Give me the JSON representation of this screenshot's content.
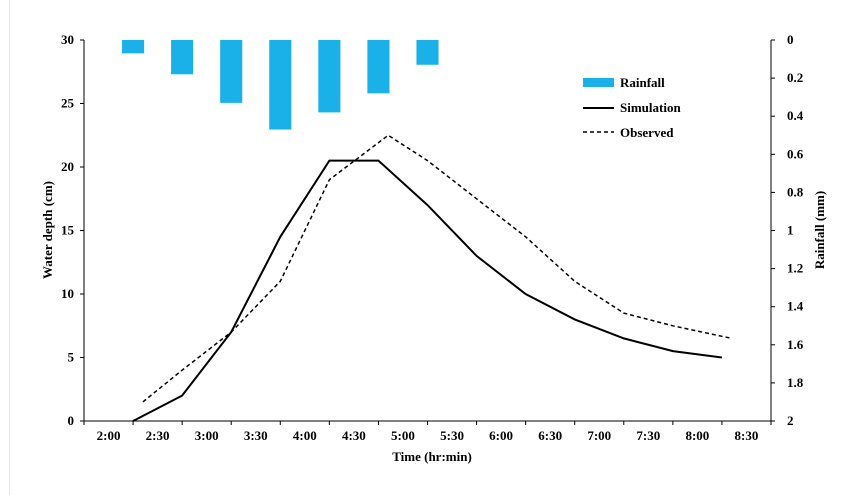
{
  "chart_data": {
    "type": "line",
    "title": "",
    "xlabel": "Time (hr:min)",
    "ylabel": "Water depth (cm)",
    "y2label": "Rainfall (mm)",
    "categories": [
      "2:00",
      "2:30",
      "3:00",
      "3:30",
      "4:00",
      "4:30",
      "5:00",
      "5:30",
      "6:00",
      "6:30",
      "7:00",
      "7:30",
      "8:00",
      "8:30"
    ],
    "ylim": [
      0,
      30
    ],
    "yticks": [
      "0",
      "5",
      "10",
      "15",
      "20",
      "25",
      "30"
    ],
    "y2lim": [
      0,
      2
    ],
    "y2_inverted": true,
    "y2ticks": [
      "0",
      "0.2",
      "0.4",
      "0.6",
      "0.8",
      "1",
      "1.2",
      "1.4",
      "1.6",
      "1.8",
      "2"
    ],
    "grid": false,
    "legend_position": "top-right",
    "rainfall": {
      "name": "Rainfall",
      "color": "#1ab0e8",
      "type": "bar",
      "axis": "right",
      "x": [
        2.5,
        3.0,
        3.5,
        4.0,
        4.5,
        5.0,
        5.5
      ],
      "values": [
        0.07,
        0.18,
        0.33,
        0.47,
        0.38,
        0.28,
        0.13
      ]
    },
    "series": [
      {
        "name": "Simulation",
        "style": "solid",
        "color": "#000000",
        "x": [
          2.5,
          3.0,
          3.5,
          4.0,
          4.5,
          5.0,
          5.5,
          6.0,
          6.5,
          7.0,
          7.5,
          8.0,
          8.5
        ],
        "values": [
          0,
          2,
          7,
          14.5,
          20.5,
          20.5,
          17,
          13,
          10,
          8,
          6.5,
          5.5,
          5
        ]
      },
      {
        "name": "Observed",
        "style": "dashed",
        "color": "#000000",
        "x": [
          2.6,
          3.0,
          3.5,
          4.0,
          4.5,
          5.1,
          5.5,
          6.0,
          6.5,
          7.0,
          7.5,
          8.0,
          8.6
        ],
        "values": [
          1.5,
          4,
          7,
          11,
          19,
          22.5,
          20.5,
          17.5,
          14.5,
          11,
          8.5,
          7.5,
          6.5
        ]
      }
    ]
  }
}
